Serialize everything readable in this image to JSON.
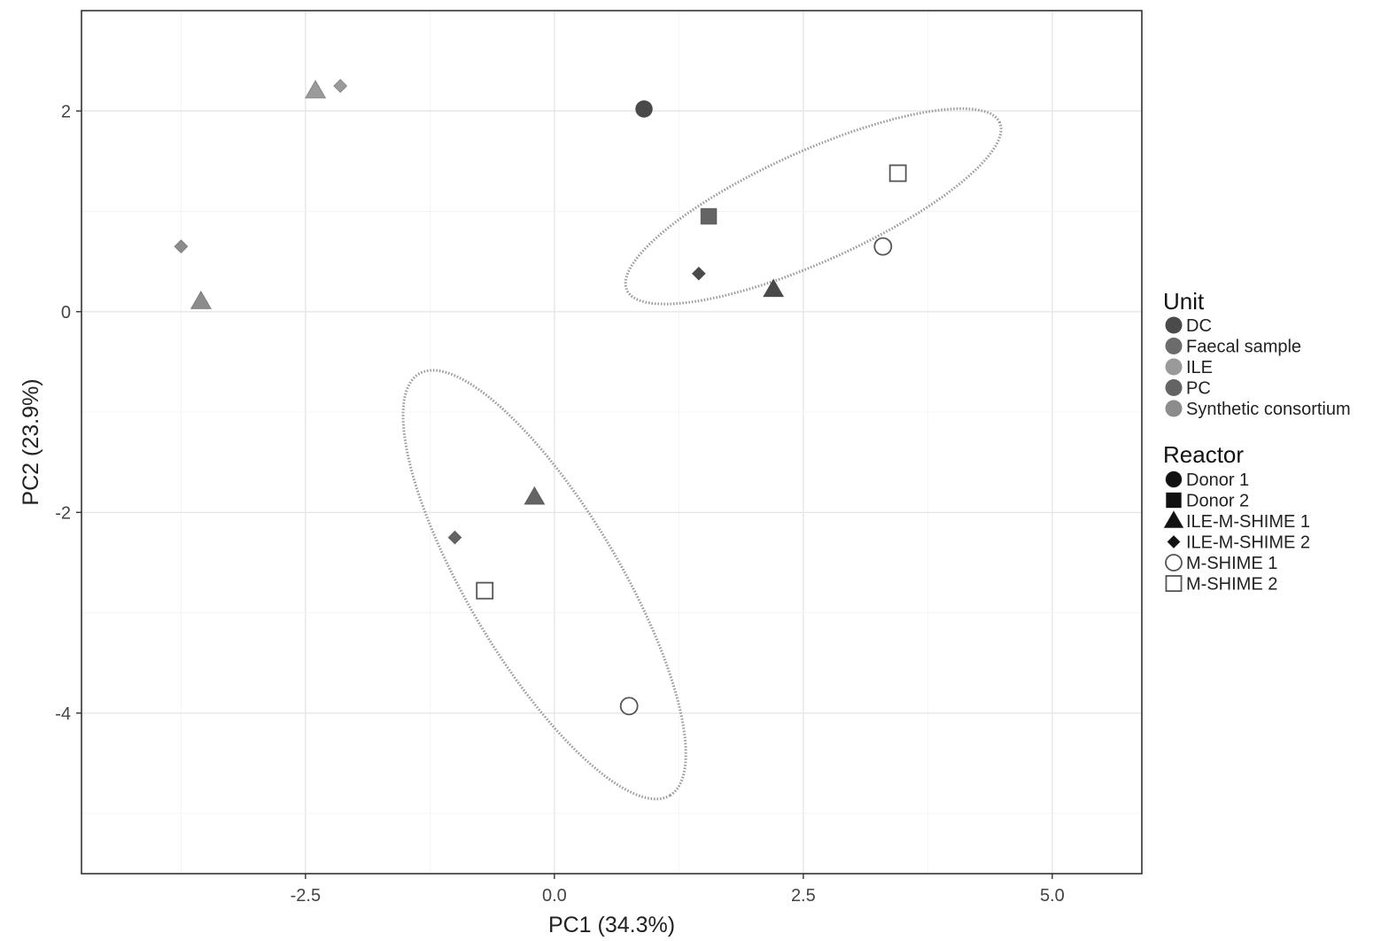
{
  "chart_data": {
    "type": "scatter",
    "title": "",
    "xlabel": "PC1 (34.3%)",
    "ylabel": "PC2 (23.9%)",
    "xlim": [
      -4.75,
      5.9
    ],
    "ylim": [
      -5.6,
      3.0
    ],
    "xticks": [
      -2.5,
      0.0,
      2.5,
      5.0
    ],
    "xtick_labels": [
      "-2.5",
      "0.0",
      "2.5",
      "5.0"
    ],
    "yticks": [
      -4,
      -2,
      0,
      2
    ],
    "ytick_labels": [
      "-4",
      "-2",
      "0",
      "2"
    ],
    "grid": true,
    "legend_position": "right",
    "points": [
      {
        "x": 0.9,
        "y": 2.02,
        "unit": "DC",
        "reactor": "Donor 1"
      },
      {
        "x": 1.55,
        "y": 0.95,
        "unit": "PC",
        "reactor": "Donor 2"
      },
      {
        "x": -2.4,
        "y": 2.2,
        "unit": "ILE",
        "reactor": "ILE-M-SHIME 1"
      },
      {
        "x": -2.15,
        "y": 2.25,
        "unit": "ILE",
        "reactor": "ILE-M-SHIME 2"
      },
      {
        "x": -3.75,
        "y": 0.65,
        "unit": "Synthetic consortium",
        "reactor": "ILE-M-SHIME 2"
      },
      {
        "x": -3.55,
        "y": 0.1,
        "unit": "Synthetic consortium",
        "reactor": "ILE-M-SHIME 1"
      },
      {
        "x": 1.45,
        "y": 0.38,
        "unit": "DC",
        "reactor": "ILE-M-SHIME 2"
      },
      {
        "x": 2.2,
        "y": 0.22,
        "unit": "DC",
        "reactor": "ILE-M-SHIME 1"
      },
      {
        "x": 3.3,
        "y": 0.65,
        "unit": "DC",
        "reactor": "M-SHIME 1"
      },
      {
        "x": 3.45,
        "y": 1.38,
        "unit": "DC",
        "reactor": "M-SHIME 2"
      },
      {
        "x": -0.2,
        "y": -1.85,
        "unit": "PC",
        "reactor": "ILE-M-SHIME 1"
      },
      {
        "x": -1.0,
        "y": -2.25,
        "unit": "PC",
        "reactor": "ILE-M-SHIME 2"
      },
      {
        "x": -0.7,
        "y": -2.78,
        "unit": "PC",
        "reactor": "M-SHIME 2"
      },
      {
        "x": 0.75,
        "y": -3.93,
        "unit": "PC",
        "reactor": "M-SHIME 1"
      }
    ],
    "ellipses": [
      {
        "cx": 2.6,
        "cy": 1.05,
        "semi_major": 2.05,
        "semi_minor": 0.55,
        "angle_deg": 24,
        "color": "#999999"
      },
      {
        "cx": -0.1,
        "cy": -2.72,
        "semi_major": 2.45,
        "semi_minor": 0.76,
        "angle_deg": -59,
        "color": "#999999"
      }
    ],
    "legend": {
      "unit": {
        "title": "Unit",
        "items": [
          {
            "label": "DC",
            "color": "#4a4a4a"
          },
          {
            "label": "Faecal sample",
            "color": "#6c6c6c"
          },
          {
            "label": "ILE",
            "color": "#9a9a9a"
          },
          {
            "label": "PC",
            "color": "#646464"
          },
          {
            "label": "Synthetic consortium",
            "color": "#8c8c8c"
          }
        ]
      },
      "reactor": {
        "title": "Reactor",
        "items": [
          {
            "label": "Donor 1",
            "shape": "circle"
          },
          {
            "label": "Donor 2",
            "shape": "square"
          },
          {
            "label": "ILE-M-SHIME 1",
            "shape": "triangle"
          },
          {
            "label": "ILE-M-SHIME 2",
            "shape": "diamond"
          },
          {
            "label": "M-SHIME 1",
            "shape": "open-circle"
          },
          {
            "label": "M-SHIME 2",
            "shape": "open-square"
          }
        ]
      }
    },
    "colors": {
      "panel_border": "#333333",
      "grid_major": "#e6e6e6",
      "grid_minor": "#f4f4f4",
      "ellipse": "#999999",
      "legend_key": "#111111"
    }
  }
}
